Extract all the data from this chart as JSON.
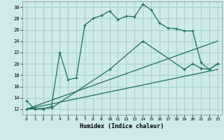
{
  "xlabel": "Humidex (Indice chaleur)",
  "background_color": "#ceeaea",
  "grid_color": "#a0cccc",
  "line_color": "#1e6e5e",
  "xlim": [
    -0.5,
    23.5
  ],
  "ylim": [
    11,
    31
  ],
  "yticks": [
    12,
    14,
    16,
    18,
    20,
    22,
    24,
    26,
    28,
    30
  ],
  "xticks": [
    0,
    1,
    2,
    3,
    4,
    5,
    6,
    7,
    8,
    9,
    10,
    11,
    12,
    13,
    14,
    15,
    16,
    17,
    18,
    19,
    20,
    21,
    22,
    23
  ],
  "series1_x": [
    0,
    1,
    2,
    3,
    4,
    5,
    6,
    7,
    8,
    9,
    10,
    11,
    12,
    13,
    14,
    15,
    16,
    17,
    18,
    19,
    20,
    21,
    22,
    23
  ],
  "series1_y": [
    13.5,
    12.0,
    12.0,
    12.5,
    22.0,
    17.2,
    17.5,
    26.8,
    28.0,
    28.5,
    29.3,
    27.8,
    28.4,
    28.3,
    30.5,
    29.5,
    27.2,
    26.3,
    26.2,
    25.8,
    25.8,
    20.2,
    19.0,
    20.0
  ],
  "series2_x": [
    0,
    3,
    10,
    14,
    19,
    20,
    21,
    22,
    23
  ],
  "series2_y": [
    12.0,
    12.2,
    19.0,
    24.0,
    19.0,
    20.0,
    19.2,
    19.0,
    20.0
  ],
  "series3_x": [
    0,
    23
  ],
  "series3_y": [
    12.0,
    24.0
  ],
  "series4_x": [
    0,
    23
  ],
  "series4_y": [
    12.0,
    19.0
  ]
}
